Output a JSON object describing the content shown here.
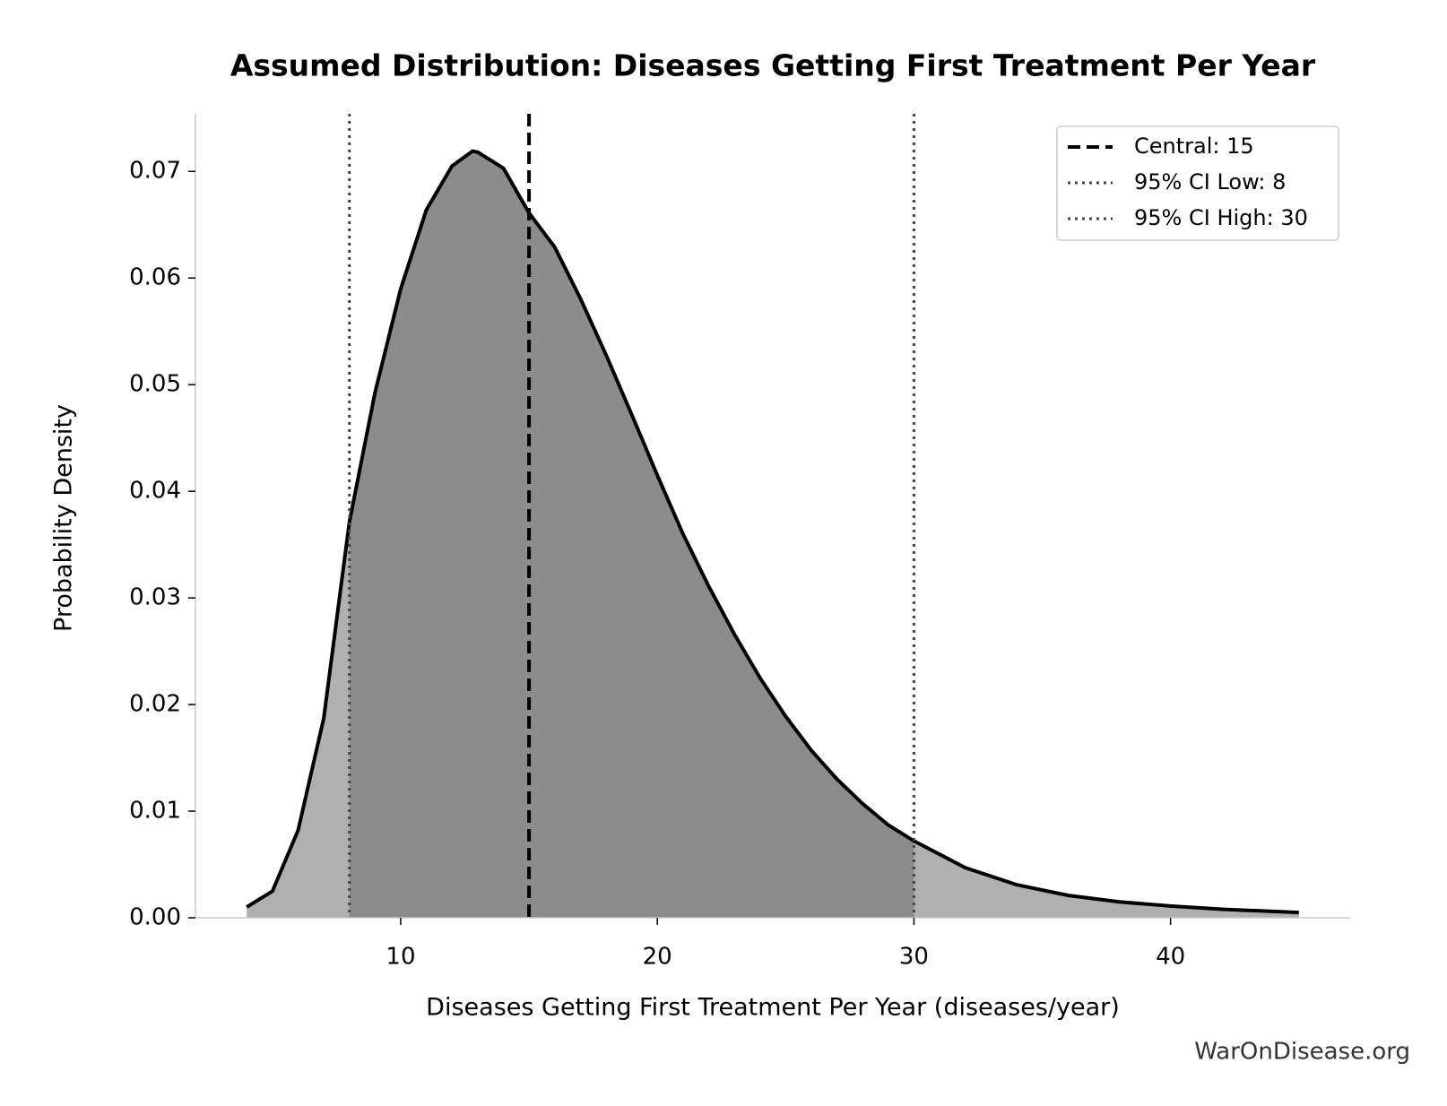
{
  "chart_data": {
    "type": "density",
    "title": "Assumed Distribution: Diseases Getting First Treatment Per Year",
    "x_label": "Diseases Getting First Treatment Per Year (diseases/year)",
    "y_label": "Probability Density",
    "watermark": "WarOnDisease.org",
    "x": [
      4,
      5,
      6,
      7,
      8,
      9,
      10,
      11,
      12,
      12.8,
      13,
      14,
      15,
      16,
      17,
      18,
      19,
      20,
      21,
      22,
      23,
      24,
      25,
      26,
      27,
      28,
      29,
      30,
      32,
      34,
      36,
      38,
      40,
      42,
      45
    ],
    "series": [
      {
        "color": "#000000",
        "values": [
          0.001,
          0.0025,
          0.0082,
          0.0187,
          0.0371,
          0.0493,
          0.059,
          0.0664,
          0.0705,
          0.0719,
          0.0718,
          0.0703,
          0.0661,
          0.0629,
          0.0581,
          0.0528,
          0.0472,
          0.0415,
          0.036,
          0.0311,
          0.0266,
          0.0225,
          0.0189,
          0.0157,
          0.013,
          0.0107,
          0.0087,
          0.0072,
          0.0047,
          0.0031,
          0.0021,
          0.0015,
          0.0011,
          0.0008,
          0.0005
        ]
      }
    ],
    "fill_color": "#b0b0b0",
    "ci_fill_color": "#8c8c8c",
    "reference_lines": [
      {
        "name": "Central: 15",
        "value": 15,
        "style": "dashed",
        "color": "#000000"
      },
      {
        "name": "95% CI Low: 8",
        "value": 8,
        "style": "dotted",
        "color": "#444444"
      },
      {
        "name": "95% CI High: 30",
        "value": 30,
        "style": "dotted",
        "color": "#444444"
      }
    ],
    "xlim": [
      2,
      47
    ],
    "ylim": [
      0,
      0.0754
    ],
    "xticks": [
      10,
      20,
      30,
      40
    ],
    "yticks": [
      {
        "value": 0,
        "label": "0.00"
      },
      0.01,
      0.02,
      0.03,
      0.04,
      0.05,
      0.06,
      0.07
    ],
    "legend": "upper right"
  }
}
